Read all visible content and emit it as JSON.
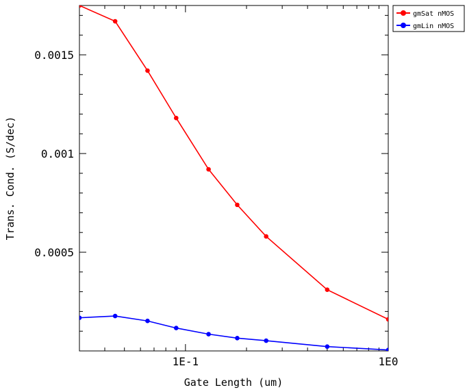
{
  "chart_data": {
    "type": "line",
    "xlabel": "Gate Length (um)",
    "ylabel": "Trans. Cond. (S/dec)",
    "x_scale": "log",
    "xlim": [
      0.03,
      1.0
    ],
    "ylim": [
      0.0,
      0.00175
    ],
    "x_tick_labels": [
      {
        "value": 0.1,
        "label": "1E-1"
      },
      {
        "value": 1.0,
        "label": "1E0"
      }
    ],
    "y_tick_labels": [
      {
        "value": 0.0005,
        "label": "0.0005"
      },
      {
        "value": 0.001,
        "label": "0.001"
      },
      {
        "value": 0.0015,
        "label": "0.0015"
      }
    ],
    "legend_position": "top-right outside",
    "series": [
      {
        "name": "gmSat nMOS",
        "color": "#ff0000",
        "x": [
          0.03,
          0.045,
          0.065,
          0.09,
          0.13,
          0.18,
          0.25,
          0.5,
          1.0
        ],
        "y": [
          0.00175,
          0.00167,
          0.00142,
          0.00118,
          0.00092,
          0.00074,
          0.00058,
          0.00031,
          0.00016
        ]
      },
      {
        "name": "gmLin nMOS",
        "color": "#0000ff",
        "x": [
          0.03,
          0.045,
          0.065,
          0.09,
          0.13,
          0.18,
          0.25,
          0.5,
          1.0
        ],
        "y": [
          0.000168,
          0.000177,
          0.000152,
          0.000116,
          8.5e-05,
          6.5e-05,
          5.2e-05,
          2.2e-05,
          5e-06
        ]
      }
    ]
  }
}
